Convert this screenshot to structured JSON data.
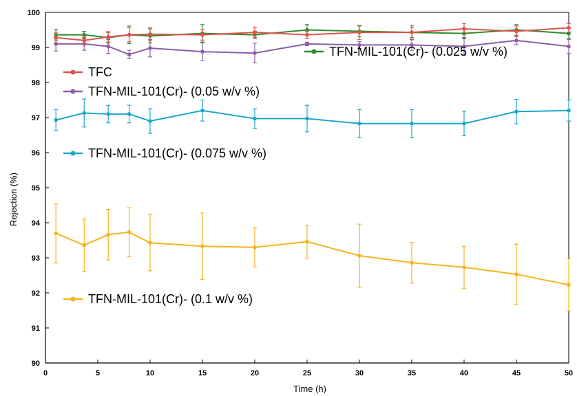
{
  "chart_data": {
    "type": "line",
    "title": "",
    "xlabel": "Time (h)",
    "ylabel": "Rejection (%)",
    "xlim": [
      0,
      50
    ],
    "ylim": [
      90,
      100
    ],
    "xticks": [
      "0",
      "5",
      "10",
      "15",
      "20",
      "25",
      "30",
      "35",
      "40",
      "45",
      "50"
    ],
    "yticks": [
      "90",
      "91",
      "92",
      "93",
      "94",
      "95",
      "96",
      "97",
      "98",
      "99",
      "100"
    ],
    "grid": false,
    "x": [
      1,
      3.7,
      6,
      8,
      10,
      15,
      20,
      25,
      30,
      35,
      40,
      45,
      50
    ],
    "series": [
      {
        "name": "TFC",
        "color": "#e0524a",
        "values": [
          99.28,
          99.2,
          99.3,
          99.36,
          99.38,
          99.36,
          99.43,
          99.36,
          99.43,
          99.43,
          99.53,
          99.46,
          99.56
        ],
        "errors": [
          0.15,
          0.12,
          0.15,
          0.2,
          0.18,
          0.15,
          0.15,
          0.1,
          0.2,
          0.2,
          0.15,
          0.15,
          0.12
        ]
      },
      {
        "name": "TFN-MIL-101(Cr)- (0.025 w/v %)",
        "color": "#2e8b2e",
        "values": [
          99.36,
          99.36,
          99.28,
          99.36,
          99.33,
          99.4,
          99.36,
          99.5,
          99.46,
          99.43,
          99.4,
          99.5,
          99.4
        ],
        "errors": [
          0.15,
          0.1,
          0.15,
          0.25,
          0.2,
          0.25,
          0.1,
          0.15,
          0.15,
          0.15,
          0.15,
          0.15,
          0.15
        ]
      },
      {
        "name": "TFN-MIL-101(Cr)- (0.05 w/v %)",
        "color": "#8e5ca8",
        "values": [
          99.1,
          99.1,
          99.03,
          98.8,
          98.98,
          98.88,
          98.84,
          99.1,
          99.07,
          99.07,
          99.03,
          99.2,
          99.03
        ],
        "errors": [
          0.2,
          0.18,
          0.2,
          0.12,
          0.25,
          0.25,
          0.28,
          0.05,
          0.1,
          0.15,
          0.25,
          0.12,
          0.2
        ]
      },
      {
        "name": "TFN-MIL-101(Cr)- (0.075 w/v %)",
        "color": "#1ba8c8",
        "values": [
          96.93,
          97.13,
          97.1,
          97.1,
          96.9,
          97.2,
          96.97,
          96.97,
          96.83,
          96.83,
          96.83,
          97.17,
          97.2
        ],
        "errors": [
          0.3,
          0.4,
          0.25,
          0.25,
          0.35,
          0.3,
          0.28,
          0.38,
          0.4,
          0.4,
          0.35,
          0.35,
          0.3
        ]
      },
      {
        "name": "TFN-MIL-101(Cr)- (0.1 w/v %)",
        "color": "#f5b41c",
        "values": [
          93.7,
          93.36,
          93.66,
          93.73,
          93.43,
          93.33,
          93.3,
          93.46,
          93.06,
          92.86,
          92.73,
          92.53,
          92.23
        ],
        "errors": [
          0.85,
          0.75,
          0.72,
          0.7,
          0.8,
          0.95,
          0.56,
          0.47,
          0.9,
          0.58,
          0.6,
          0.86,
          0.74
        ]
      }
    ]
  }
}
